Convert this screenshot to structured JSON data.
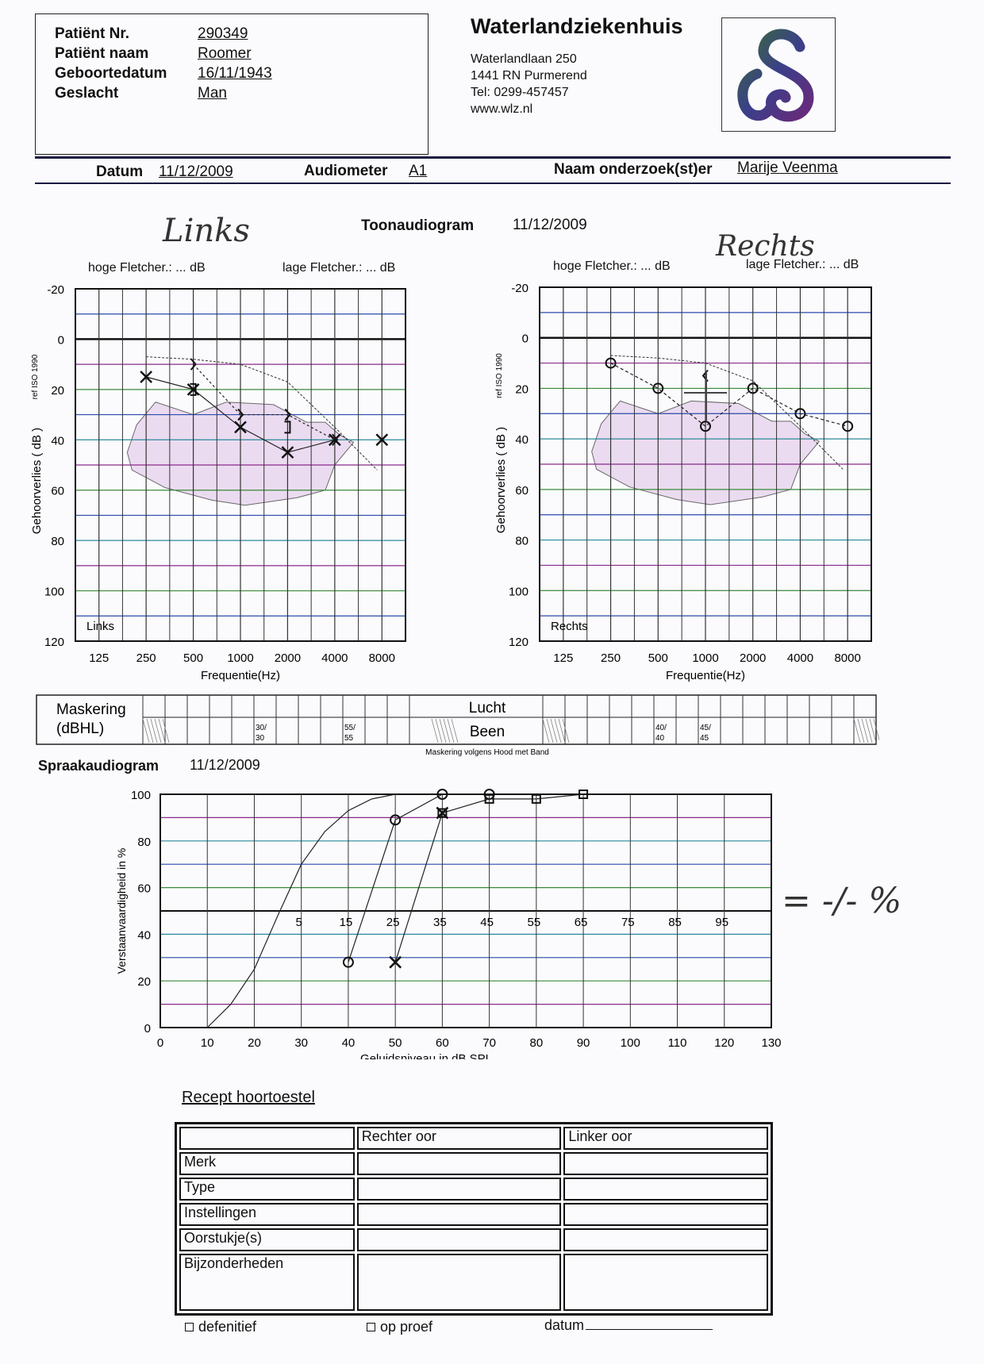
{
  "patient": {
    "fields": [
      {
        "label": "Patiënt Nr.",
        "value": "290349"
      },
      {
        "label": "Patiënt naam",
        "value": "Roomer"
      },
      {
        "label": "Geboortedatum",
        "value": "16/11/1943"
      },
      {
        "label": "Geslacht",
        "value": "Man"
      }
    ]
  },
  "hospital": {
    "name": "Waterlandziekenhuis",
    "address": [
      "Waterlandlaan 250",
      "1441 RN Purmerend",
      "Tel: 0299-457457",
      "www.wlz.nl"
    ]
  },
  "meta": {
    "datum_label": "Datum",
    "datum": "11/12/2009",
    "audiometer_label": "Audiometer",
    "audiometer": "A1",
    "examiner_label": "Naam onderzoek(st)er",
    "examiner": "Marije Veenma"
  },
  "tone": {
    "title": "Toonaudiogram",
    "date": "11/12/2009",
    "hand_left": "Links",
    "hand_right": "Rechts",
    "hoge": "hoge Fletcher.: ... dB",
    "lage": "lage Fletcher.: ... dB"
  },
  "chart_data": [
    {
      "type": "line",
      "title": "Links",
      "xlabel": "Frequentie(Hz)",
      "ylabel": "Gehoorverlies ( dB )",
      "ref": "ref ISO 1990",
      "categories": [
        "125",
        "250",
        "500",
        "1000",
        "2000",
        "4000",
        "8000"
      ],
      "yticks": [
        "-20",
        "0",
        "20",
        "40",
        "60",
        "80",
        "100",
        "120"
      ],
      "ylim": [
        -20,
        120
      ],
      "series": [
        {
          "name": "air",
          "marker": "x",
          "x": [
            "250",
            "500",
            "1000",
            "2000",
            "4000",
            "8000"
          ],
          "values": [
            15,
            20,
            35,
            45,
            40,
            40
          ]
        },
        {
          "name": "bone",
          "marker": ">",
          "x": [
            "500",
            "1000",
            "2000",
            "4000"
          ],
          "values": [
            10,
            30,
            30,
            40
          ]
        },
        {
          "name": "bone-masked",
          "marker": "]",
          "x": [
            "500",
            "2000"
          ],
          "values": [
            20,
            35
          ]
        }
      ]
    },
    {
      "type": "line",
      "title": "Rechts",
      "xlabel": "Frequentie(Hz)",
      "ylabel": "Gehoorverlies ( dB )",
      "ref": "ref ISO 1990",
      "categories": [
        "125",
        "250",
        "500",
        "1000",
        "2000",
        "4000",
        "8000"
      ],
      "yticks": [
        "-20",
        "0",
        "20",
        "40",
        "60",
        "80",
        "100",
        "120"
      ],
      "ylim": [
        -20,
        120
      ],
      "series": [
        {
          "name": "air",
          "marker": "o",
          "x": [
            "250",
            "500",
            "1000",
            "2000",
            "4000",
            "8000"
          ],
          "values": [
            10,
            20,
            35,
            20,
            30,
            35
          ]
        },
        {
          "name": "bone",
          "marker": "<",
          "x": [
            "1000"
          ],
          "values": [
            15
          ]
        }
      ]
    },
    {
      "type": "line",
      "title": "Spraakaudiogram",
      "xlabel": "Geluidsniveau in dB SPL",
      "ylabel": "Verstaanvaardigheid in %",
      "xlim": [
        0,
        130
      ],
      "ylim": [
        0,
        100
      ],
      "xticks": [
        "0",
        "10",
        "20",
        "30",
        "40",
        "50",
        "60",
        "70",
        "80",
        "90",
        "100",
        "110",
        "120",
        "130"
      ],
      "yticks": [
        "0",
        "20",
        "40",
        "60",
        "80",
        "100"
      ],
      "secondary_ticks": [
        "5",
        "15",
        "25",
        "35",
        "45",
        "55",
        "65",
        "75",
        "85",
        "95"
      ],
      "series": [
        {
          "name": "normal",
          "marker": "none",
          "x": [
            10,
            15,
            20,
            25,
            30,
            35,
            40,
            45,
            50
          ],
          "values": [
            0,
            10,
            25,
            48,
            70,
            84,
            93,
            98,
            100
          ]
        },
        {
          "name": "right",
          "marker": "o",
          "x": [
            40,
            50,
            60,
            70
          ],
          "values": [
            28,
            89,
            100,
            100
          ]
        },
        {
          "name": "left",
          "marker": "x",
          "x": [
            50,
            60
          ],
          "values": [
            28,
            92
          ]
        },
        {
          "name": "binaural",
          "marker": "square",
          "x": [
            60,
            70,
            80,
            90
          ],
          "values": [
            92,
            98,
            98,
            100
          ]
        }
      ]
    }
  ],
  "masking": {
    "label1": "Maskering",
    "label2": "(dBHL)",
    "lucht": "Lucht",
    "been": "Been",
    "cells": [
      {
        "col": 5,
        "text": "30/\n30"
      },
      {
        "col": 9,
        "text": "55/\n55"
      },
      {
        "col": 23,
        "text": "40/\n40"
      },
      {
        "col": 25,
        "text": "45/\n45"
      }
    ],
    "note": "Maskering volgens Hood  met Band"
  },
  "speech": {
    "title": "Spraakaudiogram",
    "date": "11/12/2009",
    "hand_note": "= -/- %"
  },
  "recept": {
    "title": "Recept hoortoestel",
    "columns": [
      "",
      "Rechter oor",
      "Linker oor"
    ],
    "rows": [
      "Merk",
      "Type",
      "Instellingen",
      "Oorstukje(s)",
      "Bijzonderheden"
    ],
    "footer": {
      "definitief": "defenitief",
      "proef": "op proef",
      "datum": "datum"
    }
  }
}
